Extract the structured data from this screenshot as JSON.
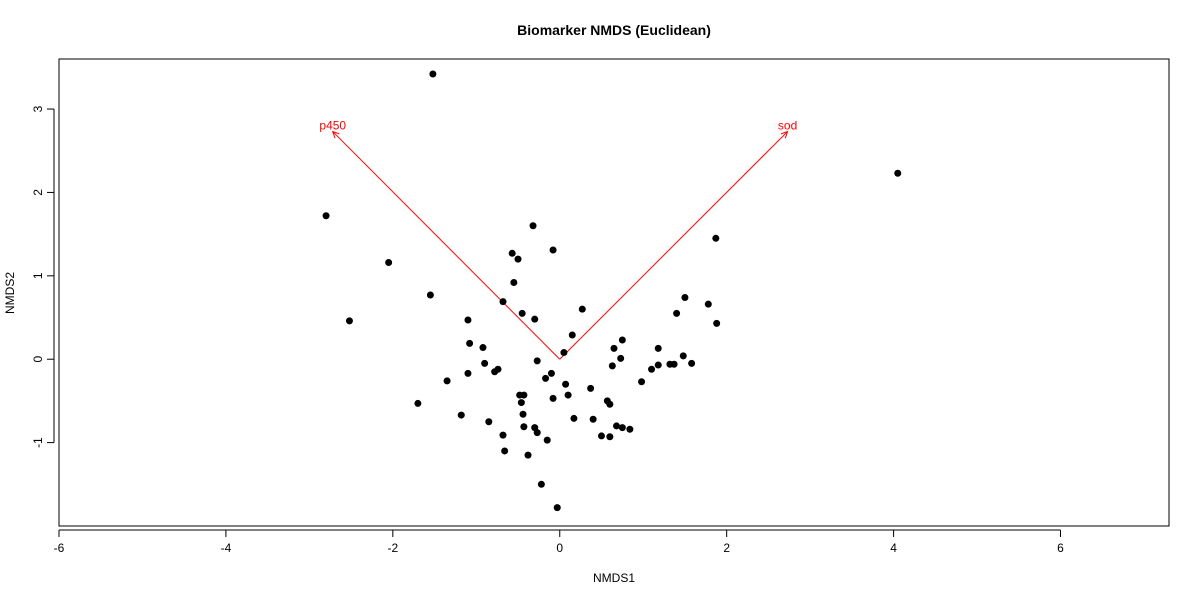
{
  "chart_data": {
    "type": "scatter",
    "title": "Biomarker NMDS (Euclidean)",
    "xlabel": "NMDS1",
    "ylabel": "NMDS2",
    "xlim": [
      -6,
      7.3
    ],
    "ylim": [
      -2,
      3.6
    ],
    "x_ticks": [
      -6,
      -4,
      -2,
      0,
      2,
      4,
      6
    ],
    "y_ticks": [
      -1,
      0,
      1,
      2,
      3
    ],
    "grid": false,
    "point_color": "#000000",
    "vector_color": "#ff0000",
    "points": [
      {
        "x": -1.52,
        "y": 3.42
      },
      {
        "x": 4.05,
        "y": 2.23
      },
      {
        "x": -2.8,
        "y": 1.72
      },
      {
        "x": -2.05,
        "y": 1.16
      },
      {
        "x": -2.52,
        "y": 0.46
      },
      {
        "x": -1.55,
        "y": 0.77
      },
      {
        "x": -1.7,
        "y": -0.53
      },
      {
        "x": -1.18,
        "y": -0.67
      },
      {
        "x": -1.1,
        "y": 0.47
      },
      {
        "x": -1.08,
        "y": 0.19
      },
      {
        "x": -1.1,
        "y": -0.17
      },
      {
        "x": -1.35,
        "y": -0.26
      },
      {
        "x": -0.92,
        "y": 0.14
      },
      {
        "x": -0.9,
        "y": -0.05
      },
      {
        "x": -0.85,
        "y": -0.75
      },
      {
        "x": -0.78,
        "y": -0.15
      },
      {
        "x": -0.74,
        "y": -0.12
      },
      {
        "x": -0.68,
        "y": -0.91
      },
      {
        "x": -0.66,
        "y": -1.1
      },
      {
        "x": -0.68,
        "y": 0.69
      },
      {
        "x": -0.57,
        "y": 1.27
      },
      {
        "x": -0.55,
        "y": 0.92
      },
      {
        "x": -0.5,
        "y": 1.2
      },
      {
        "x": -0.45,
        "y": 0.55
      },
      {
        "x": -0.48,
        "y": -0.43
      },
      {
        "x": -0.46,
        "y": -0.52
      },
      {
        "x": -0.43,
        "y": -0.43
      },
      {
        "x": -0.44,
        "y": -0.66
      },
      {
        "x": -0.43,
        "y": -0.81
      },
      {
        "x": -0.38,
        "y": -1.15
      },
      {
        "x": -0.32,
        "y": 1.6
      },
      {
        "x": -0.3,
        "y": 0.48
      },
      {
        "x": -0.3,
        "y": -0.82
      },
      {
        "x": -0.27,
        "y": -0.02
      },
      {
        "x": -0.27,
        "y": -0.88
      },
      {
        "x": -0.22,
        "y": -1.5
      },
      {
        "x": -0.17,
        "y": -0.23
      },
      {
        "x": -0.15,
        "y": -0.97
      },
      {
        "x": -0.1,
        "y": -0.17
      },
      {
        "x": -0.08,
        "y": 1.31
      },
      {
        "x": -0.08,
        "y": -0.47
      },
      {
        "x": -0.03,
        "y": -1.78
      },
      {
        "x": 0.05,
        "y": 0.08
      },
      {
        "x": 0.07,
        "y": -0.3
      },
      {
        "x": 0.1,
        "y": -0.43
      },
      {
        "x": 0.15,
        "y": 0.29
      },
      {
        "x": 0.17,
        "y": -0.71
      },
      {
        "x": 0.27,
        "y": 0.6
      },
      {
        "x": 0.37,
        "y": -0.35
      },
      {
        "x": 0.4,
        "y": -0.72
      },
      {
        "x": 0.5,
        "y": -0.92
      },
      {
        "x": 0.57,
        "y": -0.5
      },
      {
        "x": 0.6,
        "y": -0.54
      },
      {
        "x": 0.6,
        "y": -0.93
      },
      {
        "x": 0.63,
        "y": -0.08
      },
      {
        "x": 0.65,
        "y": 0.13
      },
      {
        "x": 0.68,
        "y": -0.8
      },
      {
        "x": 0.73,
        "y": 0.01
      },
      {
        "x": 0.75,
        "y": 0.23
      },
      {
        "x": 0.75,
        "y": -0.82
      },
      {
        "x": 0.84,
        "y": -0.84
      },
      {
        "x": 0.98,
        "y": -0.27
      },
      {
        "x": 1.1,
        "y": -0.12
      },
      {
        "x": 1.18,
        "y": -0.07
      },
      {
        "x": 1.18,
        "y": 0.13
      },
      {
        "x": 1.32,
        "y": -0.06
      },
      {
        "x": 1.37,
        "y": -0.06
      },
      {
        "x": 1.4,
        "y": 0.55
      },
      {
        "x": 1.48,
        "y": 0.04
      },
      {
        "x": 1.5,
        "y": 0.74
      },
      {
        "x": 1.58,
        "y": -0.05
      },
      {
        "x": 1.78,
        "y": 0.66
      },
      {
        "x": 1.87,
        "y": 1.45
      },
      {
        "x": 1.88,
        "y": 0.43
      }
    ],
    "vectors": [
      {
        "label": "p450",
        "x": -2.72,
        "y": 2.73
      },
      {
        "label": "sod",
        "x": 2.73,
        "y": 2.73
      }
    ]
  }
}
